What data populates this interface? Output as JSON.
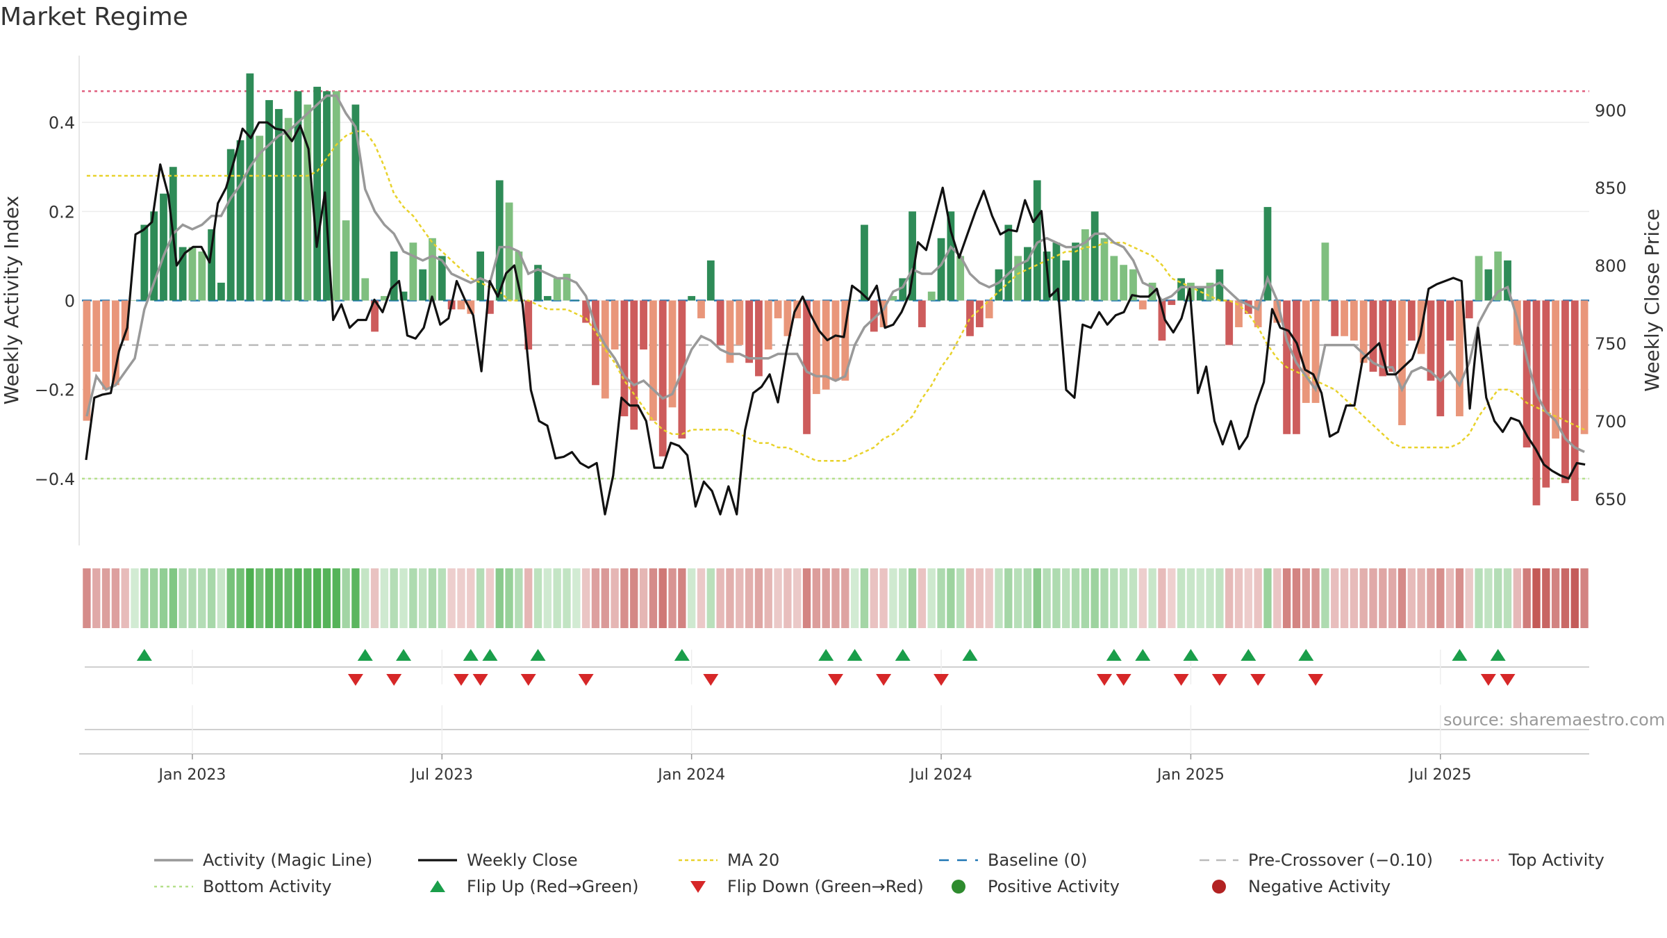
{
  "title": "Market Regime",
  "source": "source: sharemaestro.com",
  "colors": {
    "pos_strong": "#2e8b57",
    "pos_light": "#7fbf7f",
    "neg_strong": "#cd5c5c",
    "neg_light": "#e9967a",
    "magic": "#999999",
    "close": "#111111",
    "ma20": "#e8d22b",
    "baseline": "#1f77b4",
    "precross": "#bbbbbb",
    "top": "#e06080",
    "bottom": "#b5e08a",
    "flip_up": "#1a9e4a",
    "flip_down": "#d62728"
  },
  "chart_data": {
    "type": "bar",
    "title": "Market Regime",
    "ylabel": "Weekly Activity Index",
    "y2label": "Weekly Close Price",
    "ylim": [
      -0.55,
      0.55
    ],
    "y2lim": [
      620,
      935
    ],
    "yticks": [
      -0.4,
      -0.2,
      0,
      0.2,
      0.4
    ],
    "ytick_labels": [
      "−0.4",
      "−0.2",
      "0",
      "0.2",
      "0.4"
    ],
    "y2ticks": [
      650,
      700,
      750,
      800,
      850,
      900
    ],
    "xticks": [
      {
        "label": "Jan 2023",
        "week": 11
      },
      {
        "label": "Jul 2023",
        "week": 37
      },
      {
        "label": "Jan 2024",
        "week": 63
      },
      {
        "label": "Jul 2024",
        "week": 89
      },
      {
        "label": "Jan 2025",
        "week": 115
      },
      {
        "label": "Jul 2025",
        "week": 141
      }
    ],
    "weeks": 157,
    "reference_lines": {
      "top": 0.47,
      "bottom": -0.4,
      "pre_crossover": -0.1,
      "baseline": 0
    },
    "activity": [
      -0.27,
      -0.16,
      -0.2,
      -0.19,
      -0.09,
      0,
      0.17,
      0.2,
      0.24,
      0.3,
      0.12,
      0.12,
      0.11,
      0.16,
      0.04,
      0.34,
      0.36,
      0.51,
      0.37,
      0.45,
      0.43,
      0.41,
      0.47,
      0.44,
      0.48,
      0.47,
      0.47,
      0.18,
      0.44,
      0.05,
      -0.07,
      0.01,
      0.11,
      0.02,
      0.13,
      0.07,
      0.14,
      0.1,
      -0.02,
      -0.02,
      -0.03,
      0.11,
      -0.03,
      0.27,
      0.22,
      0.11,
      -0.11,
      0.08,
      0.01,
      0.05,
      0.06,
      0,
      -0.05,
      -0.19,
      -0.22,
      -0.11,
      -0.26,
      -0.29,
      -0.11,
      -0.27,
      -0.35,
      -0.24,
      -0.31,
      0.01,
      -0.04,
      0.09,
      -0.1,
      -0.14,
      -0.1,
      -0.14,
      -0.17,
      -0.11,
      -0.04,
      -0.08,
      -0.04,
      -0.3,
      -0.21,
      -0.2,
      -0.18,
      -0.18,
      0,
      0.17,
      -0.07,
      -0.06,
      0.01,
      0.05,
      0.2,
      -0.06,
      0.02,
      0.14,
      0.2,
      0.1,
      -0.08,
      -0.06,
      -0.04,
      0.07,
      0.17,
      0.1,
      0.12,
      0.27,
      0.11,
      0.13,
      0.09,
      0.13,
      0.16,
      0.2,
      0.14,
      0.1,
      0.08,
      0.07,
      -0.02,
      0.04,
      -0.09,
      -0.01,
      0.05,
      0.04,
      0.03,
      0.04,
      0.07,
      -0.1,
      -0.06,
      -0.03,
      -0.06,
      0.21,
      -0.05,
      -0.3,
      -0.3,
      -0.23,
      -0.23,
      0.13,
      -0.08,
      -0.08,
      -0.09,
      -0.14,
      -0.16,
      -0.17,
      -0.16,
      -0.28,
      -0.09,
      -0.12,
      -0.18,
      -0.26,
      -0.09,
      -0.26,
      -0.04,
      0.1,
      0.07,
      0.11,
      0.09,
      -0.1,
      -0.33,
      -0.46,
      -0.42,
      -0.31,
      -0.41,
      -0.45,
      -0.3
    ],
    "bar_shade": [
      "L",
      "L",
      "L",
      "L",
      "L",
      "L",
      "S",
      "S",
      "S",
      "S",
      "S",
      "L",
      "L",
      "S",
      "S",
      "S",
      "S",
      "S",
      "L",
      "S",
      "S",
      "L",
      "S",
      "L",
      "S",
      "S",
      "L",
      "L",
      "S",
      "L",
      "S",
      "L",
      "S",
      "S",
      "L",
      "S",
      "L",
      "S",
      "S",
      "L",
      "L",
      "S",
      "S",
      "S",
      "L",
      "L",
      "S",
      "S",
      "S",
      "L",
      "L",
      "S",
      "S",
      "S",
      "L",
      "L",
      "S",
      "S",
      "S",
      "L",
      "S",
      "L",
      "S",
      "S",
      "L",
      "S",
      "S",
      "L",
      "L",
      "S",
      "S",
      "L",
      "L",
      "L",
      "L",
      "S",
      "L",
      "L",
      "L",
      "L",
      "L",
      "S",
      "S",
      "L",
      "L",
      "S",
      "S",
      "S",
      "L",
      "S",
      "S",
      "L",
      "S",
      "S",
      "L",
      "S",
      "S",
      "L",
      "S",
      "S",
      "S",
      "S",
      "S",
      "S",
      "L",
      "S",
      "L",
      "L",
      "L",
      "L",
      "L",
      "L",
      "S",
      "S",
      "S",
      "L",
      "S",
      "L",
      "S",
      "S",
      "L",
      "S",
      "L",
      "S",
      "L",
      "S",
      "S",
      "L",
      "L",
      "L",
      "S",
      "L",
      "L",
      "L",
      "S",
      "S",
      "S",
      "L",
      "S",
      "L",
      "S",
      "S",
      "S",
      "L",
      "S",
      "L",
      "S",
      "L",
      "S",
      "L",
      "S",
      "S",
      "S",
      "L",
      "S",
      "S",
      "L"
    ],
    "magic_line": [
      -0.26,
      -0.17,
      -0.2,
      -0.19,
      -0.16,
      -0.13,
      -0.02,
      0.04,
      0.1,
      0.15,
      0.17,
      0.16,
      0.17,
      0.19,
      0.19,
      0.23,
      0.26,
      0.3,
      0.33,
      0.35,
      0.37,
      0.38,
      0.4,
      0.42,
      0.44,
      0.46,
      0.46,
      0.42,
      0.39,
      0.25,
      0.2,
      0.17,
      0.15,
      0.11,
      0.1,
      0.09,
      0.1,
      0.09,
      0.06,
      0.05,
      0.04,
      0.05,
      0.04,
      0.12,
      0.12,
      0.11,
      0.06,
      0.07,
      0.06,
      0.05,
      0.05,
      0.04,
      0.01,
      -0.06,
      -0.1,
      -0.13,
      -0.17,
      -0.19,
      -0.18,
      -0.2,
      -0.22,
      -0.21,
      -0.16,
      -0.11,
      -0.08,
      -0.09,
      -0.11,
      -0.12,
      -0.12,
      -0.13,
      -0.13,
      -0.13,
      -0.12,
      -0.12,
      -0.12,
      -0.16,
      -0.17,
      -0.17,
      -0.18,
      -0.17,
      -0.1,
      -0.06,
      -0.04,
      -0.02,
      0.02,
      0.03,
      0.07,
      0.06,
      0.06,
      0.08,
      0.12,
      0.1,
      0.06,
      0.04,
      0.03,
      0.04,
      0.06,
      0.08,
      0.09,
      0.13,
      0.14,
      0.13,
      0.12,
      0.12,
      0.13,
      0.15,
      0.15,
      0.13,
      0.12,
      0.09,
      0.04,
      0.03,
      0,
      0.01,
      0.03,
      0.03,
      0.03,
      0.03,
      0.04,
      0.02,
      0,
      -0.01,
      -0.02,
      0.05,
      0,
      -0.09,
      -0.14,
      -0.17,
      -0.2,
      -0.1,
      -0.1,
      -0.1,
      -0.1,
      -0.12,
      -0.14,
      -0.15,
      -0.15,
      -0.2,
      -0.16,
      -0.15,
      -0.16,
      -0.18,
      -0.16,
      -0.19,
      -0.14,
      -0.05,
      -0.01,
      0.02,
      0.03,
      -0.04,
      -0.13,
      -0.21,
      -0.25,
      -0.27,
      -0.31,
      -0.33,
      -0.34
    ],
    "weekly_close": [
      675,
      715,
      717,
      718,
      745,
      760,
      820,
      823,
      828,
      865,
      845,
      800,
      808,
      812,
      812,
      802,
      840,
      850,
      868,
      888,
      882,
      892,
      892,
      888,
      887,
      880,
      890,
      875,
      812,
      847,
      765,
      775,
      760,
      765,
      765,
      778,
      770,
      785,
      790,
      755,
      753,
      760,
      780,
      762,
      766,
      790,
      778,
      768,
      732,
      790,
      780,
      795,
      800,
      775,
      720,
      700,
      697,
      676,
      677,
      680,
      673,
      670,
      673,
      640,
      665,
      715,
      710,
      710,
      700,
      670,
      670,
      686,
      684,
      678,
      645,
      661,
      655,
      640,
      658,
      640,
      694,
      718,
      722,
      730,
      712,
      744,
      770,
      780,
      768,
      758,
      752,
      755,
      754,
      787,
      783,
      778,
      787,
      760,
      762,
      770,
      782,
      815,
      810,
      830,
      850,
      822,
      805,
      820,
      835,
      848,
      832,
      820,
      823,
      822,
      842,
      828,
      835,
      780,
      785,
      720,
      715,
      762,
      760,
      770,
      762,
      768,
      770,
      781,
      780,
      780,
      785,
      765,
      757,
      766,
      785,
      718,
      735,
      700,
      685,
      700,
      682,
      690,
      710,
      725,
      772,
      760,
      758,
      750,
      733,
      730,
      718,
      690,
      693,
      710,
      710,
      740,
      745,
      750,
      730,
      730,
      735,
      740,
      755,
      785,
      788,
      790,
      792,
      790,
      708,
      760,
      715,
      700,
      693,
      702,
      700,
      690,
      682,
      672,
      668,
      665,
      663,
      673,
      672
    ],
    "ma20": [
      0.28,
      0.28,
      0.28,
      0.28,
      0.28,
      0.28,
      0.28,
      0.28,
      0.28,
      0.28,
      0.28,
      0.28,
      0.28,
      0.28,
      0.28,
      0.28,
      0.28,
      0.28,
      0.28,
      0.28,
      0.28,
      0.28,
      0.28,
      0.28,
      0.29,
      0.32,
      0.35,
      0.37,
      0.38,
      0.38,
      0.35,
      0.3,
      0.24,
      0.21,
      0.19,
      0.16,
      0.13,
      0.11,
      0.09,
      0.07,
      0.05,
      0.04,
      0.03,
      0.02,
      0,
      0,
      0,
      -0.01,
      -0.02,
      -0.02,
      -0.02,
      -0.03,
      -0.04,
      -0.07,
      -0.11,
      -0.14,
      -0.18,
      -0.21,
      -0.24,
      -0.27,
      -0.29,
      -0.3,
      -0.3,
      -0.29,
      -0.29,
      -0.29,
      -0.29,
      -0.29,
      -0.3,
      -0.31,
      -0.32,
      -0.32,
      -0.33,
      -0.33,
      -0.34,
      -0.35,
      -0.36,
      -0.36,
      -0.36,
      -0.36,
      -0.35,
      -0.34,
      -0.33,
      -0.31,
      -0.3,
      -0.28,
      -0.26,
      -0.22,
      -0.19,
      -0.15,
      -0.12,
      -0.08,
      -0.04,
      -0.02,
      0,
      0.02,
      0.04,
      0.06,
      0.07,
      0.08,
      0.09,
      0.1,
      0.11,
      0.11,
      0.12,
      0.12,
      0.13,
      0.13,
      0.13,
      0.12,
      0.11,
      0.1,
      0.08,
      0.05,
      0.04,
      0.03,
      0.02,
      0.01,
      0,
      0,
      -0.01,
      -0.03,
      -0.06,
      -0.1,
      -0.13,
      -0.15,
      -0.16,
      -0.17,
      -0.18,
      -0.19,
      -0.2,
      -0.22,
      -0.24,
      -0.26,
      -0.28,
      -0.3,
      -0.32,
      -0.33,
      -0.33,
      -0.33,
      -0.33,
      -0.33,
      -0.33,
      -0.32,
      -0.3,
      -0.26,
      -0.23,
      -0.2,
      -0.2,
      -0.21,
      -0.23,
      -0.24,
      -0.25,
      -0.26,
      -0.27,
      -0.28,
      -0.29
    ],
    "flip_up_weeks": [
      6,
      29,
      33,
      40,
      42,
      47,
      62,
      77,
      80,
      85,
      92,
      107,
      110,
      115,
      121,
      127,
      143,
      147
    ],
    "flip_down_weeks": [
      28,
      32,
      39,
      41,
      46,
      52,
      65,
      78,
      83,
      89,
      106,
      108,
      114,
      118,
      122,
      128,
      146,
      148
    ],
    "legend": [
      {
        "key": "magic",
        "label": "Activity (Magic Line)"
      },
      {
        "key": "close",
        "label": "Weekly Close"
      },
      {
        "key": "ma20",
        "label": "MA 20"
      },
      {
        "key": "baseline",
        "label": "Baseline (0)"
      },
      {
        "key": "precross",
        "label": "Pre-Crossover (−0.10)"
      },
      {
        "key": "top",
        "label": "Top Activity"
      },
      {
        "key": "bottom",
        "label": "Bottom Activity"
      },
      {
        "key": "flip_up",
        "label": "Flip Up (Red→Green)"
      },
      {
        "key": "flip_down",
        "label": "Flip Down (Green→Red)"
      },
      {
        "key": "pos",
        "label": "Positive Activity"
      },
      {
        "key": "neg",
        "label": "Negative Activity"
      }
    ]
  }
}
